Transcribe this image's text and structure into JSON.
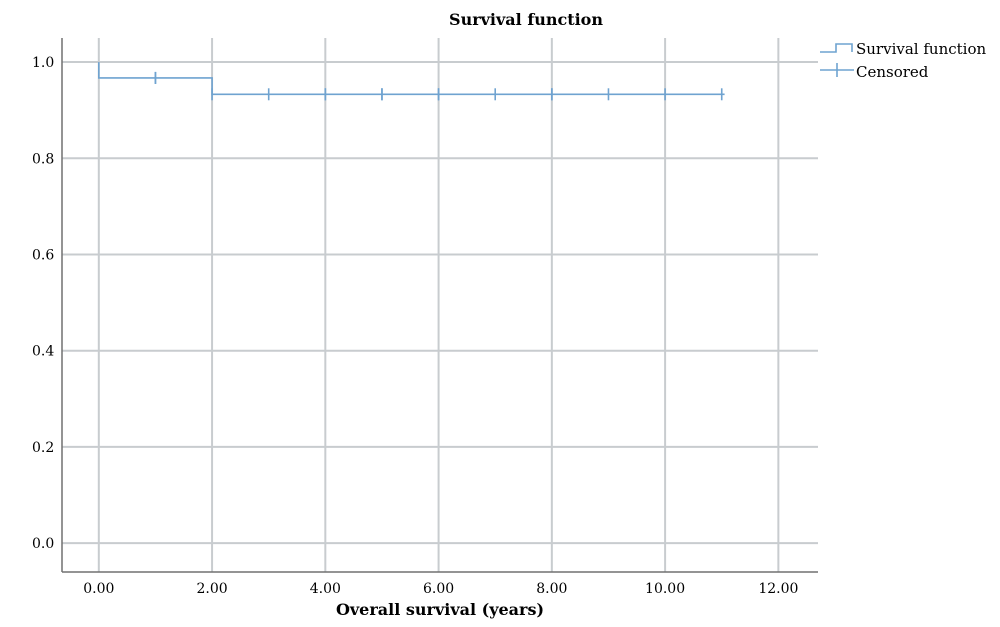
{
  "chart_data": {
    "type": "line",
    "title": "Survival function",
    "xlabel": "Overall survival (years)",
    "ylabel": "",
    "xlim": [
      -0.65,
      12.7
    ],
    "ylim": [
      -0.06,
      1.05
    ],
    "x_ticks": [
      0,
      2,
      4,
      6,
      8,
      10,
      12
    ],
    "x_tick_labels": [
      "0.00",
      "2.00",
      "4.00",
      "6.00",
      "8.00",
      "10.00",
      "12.00"
    ],
    "y_ticks": [
      0.0,
      0.2,
      0.4,
      0.6,
      0.8,
      1.0
    ],
    "y_tick_labels": [
      "0.0",
      "0.2",
      "0.4",
      "0.6",
      "0.8",
      "1.0"
    ],
    "grid": true,
    "legend_position": "top-right",
    "series": [
      {
        "name": "Survival function",
        "kind": "step",
        "color": "#6fa3d0",
        "x": [
          0,
          0,
          2,
          2,
          11.05
        ],
        "y": [
          1.0,
          0.967,
          0.967,
          0.933,
          0.933
        ]
      },
      {
        "name": "Censored",
        "kind": "censor-marks",
        "color": "#6fa3d0",
        "x": [
          1,
          1,
          2,
          3,
          4,
          4,
          5,
          5,
          6,
          6,
          7,
          8,
          8,
          9,
          10,
          11
        ],
        "y": [
          0.967,
          0.967,
          0.933,
          0.933,
          0.933,
          0.933,
          0.933,
          0.933,
          0.933,
          0.933,
          0.933,
          0.933,
          0.933,
          0.933,
          0.933,
          0.933
        ]
      }
    ]
  }
}
